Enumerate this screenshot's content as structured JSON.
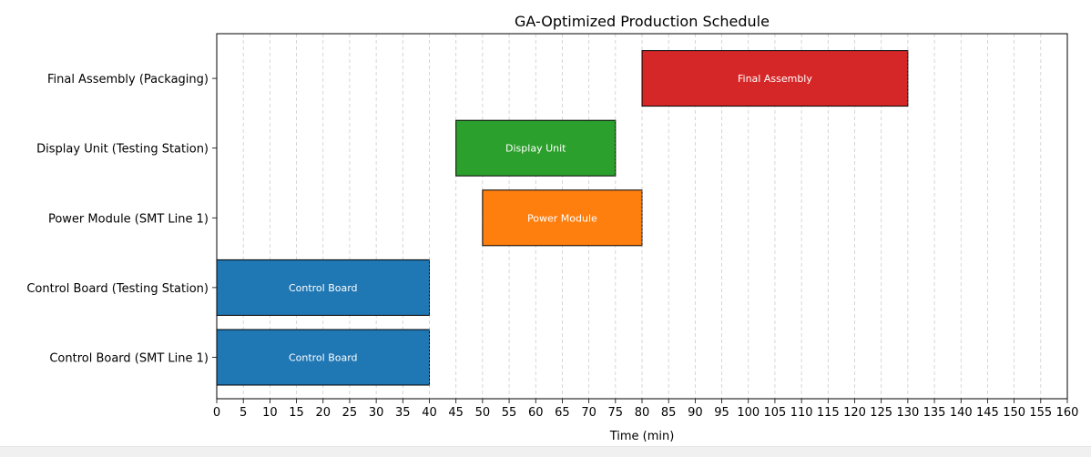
{
  "chart_data": {
    "type": "gantt",
    "title": "GA-Optimized Production Schedule",
    "xlabel": "Time (min)",
    "ylabel": "",
    "xlim": [
      0,
      160
    ],
    "x_ticks": [
      0,
      5,
      10,
      15,
      20,
      25,
      30,
      35,
      40,
      45,
      50,
      55,
      60,
      65,
      70,
      75,
      80,
      85,
      90,
      95,
      100,
      105,
      110,
      115,
      120,
      125,
      130,
      135,
      140,
      145,
      150,
      155,
      160
    ],
    "grid": "x-dashed",
    "rows": [
      {
        "label": "Control Board (SMT Line 1)",
        "start": 0,
        "end": 40,
        "bar_label": "Control Board",
        "color": "#1f77b4"
      },
      {
        "label": "Control Board (Testing Station)",
        "start": 0,
        "end": 40,
        "bar_label": "Control Board",
        "color": "#1f77b4"
      },
      {
        "label": "Power Module (SMT Line 1)",
        "start": 50,
        "end": 80,
        "bar_label": "Power Module",
        "color": "#ff7f0e"
      },
      {
        "label": "Display Unit (Testing Station)",
        "start": 45,
        "end": 75,
        "bar_label": "Display Unit",
        "color": "#2ca02c"
      },
      {
        "label": "Final Assembly (Packaging)",
        "start": 80,
        "end": 130,
        "bar_label": "Final Assembly",
        "color": "#d62728"
      }
    ]
  }
}
